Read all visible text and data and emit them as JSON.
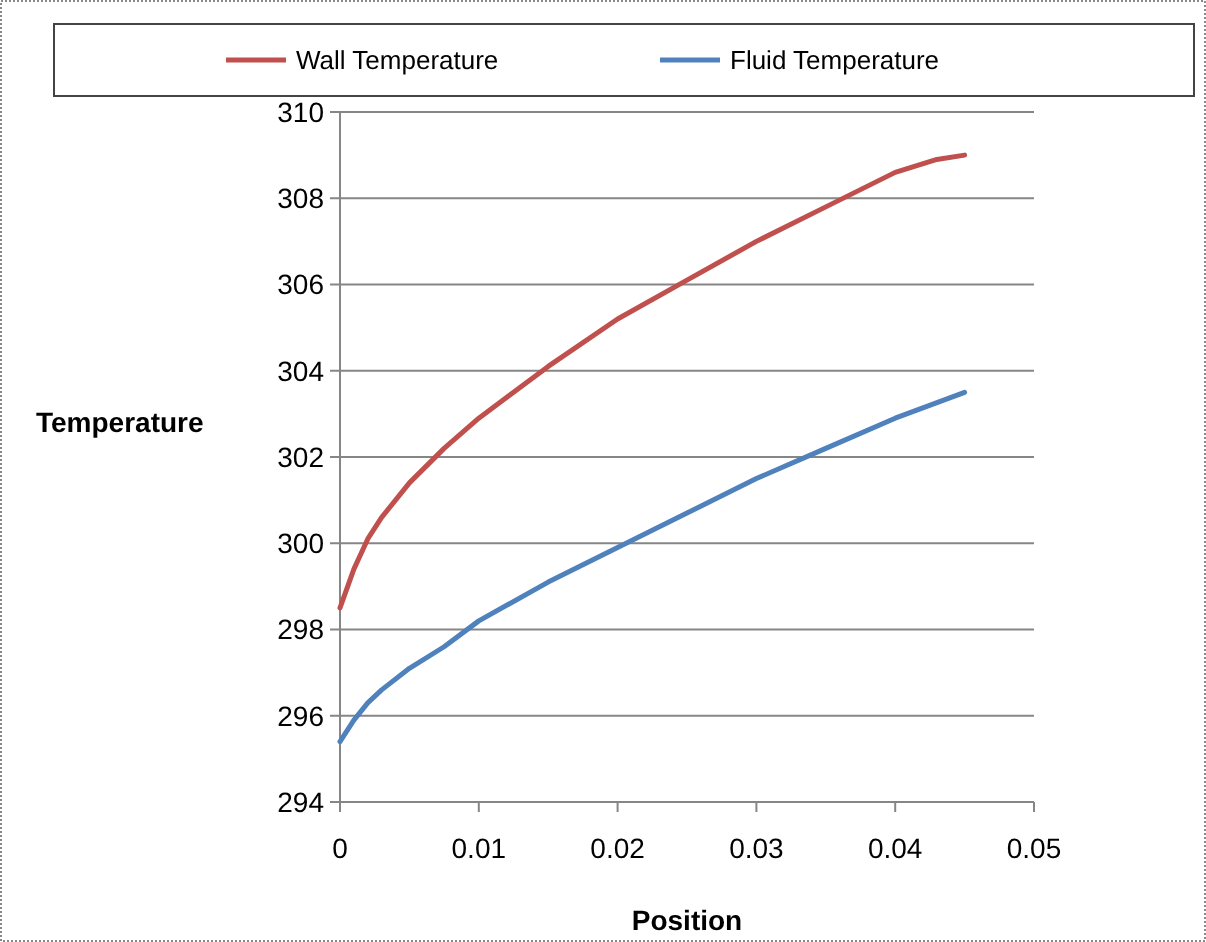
{
  "chart_data": {
    "type": "line",
    "xlabel": "Position",
    "ylabel": "Temperature",
    "xlim": [
      0,
      0.05
    ],
    "xticks": [
      0,
      0.01,
      0.02,
      0.03,
      0.04,
      0.05
    ],
    "ylim": [
      294,
      310
    ],
    "yticks": [
      294,
      296,
      298,
      300,
      302,
      304,
      306,
      308,
      310
    ],
    "grid": "y",
    "legend": "top",
    "marker": "none",
    "line_style": "solid",
    "series": [
      {
        "name": "Wall Temperature",
        "color": "#c0504d",
        "x": [
          0,
          0.001,
          0.002,
          0.003,
          0.005,
          0.0075,
          0.01,
          0.015,
          0.02,
          0.025,
          0.03,
          0.035,
          0.04,
          0.043,
          0.045
        ],
        "values": [
          298.5,
          299.4,
          300.1,
          300.6,
          301.4,
          302.2,
          302.9,
          304.1,
          305.2,
          306.1,
          307.0,
          307.8,
          308.6,
          308.9,
          309.0
        ]
      },
      {
        "name": "Fluid Temperature",
        "color": "#4f81bd",
        "x": [
          0,
          0.001,
          0.002,
          0.003,
          0.005,
          0.0075,
          0.01,
          0.015,
          0.02,
          0.025,
          0.03,
          0.035,
          0.04,
          0.045
        ],
        "values": [
          295.4,
          295.9,
          296.3,
          296.6,
          297.1,
          297.6,
          298.2,
          299.1,
          299.9,
          300.7,
          301.5,
          302.2,
          302.9,
          303.5
        ]
      }
    ]
  }
}
